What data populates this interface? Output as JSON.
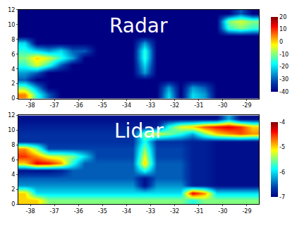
{
  "chart_data": [
    {
      "type": "heatmap",
      "title": "Radar",
      "color": "Jet",
      "x": [
        -38.25,
        -37.75,
        -37.25,
        -36.75,
        -36.25,
        -35.75,
        -35.25,
        -34.75,
        -34.25,
        -33.75,
        -33.25,
        -32.75,
        -32.25,
        -31.75,
        -31.25,
        -30.75,
        -30.25,
        -29.75,
        -29.25,
        -28.75
      ],
      "y": [
        0.5,
        1.5,
        2.5,
        3.5,
        4.5,
        5.5,
        6.5,
        7.5,
        8.5,
        9.5,
        10.5,
        11.5
      ],
      "xlim": [
        -38.5,
        -28.5
      ],
      "xticks": [
        -38,
        -37,
        -36,
        -35,
        -34,
        -33,
        -32,
        -31,
        -30,
        -29
      ],
      "ylim": [
        0,
        12
      ],
      "yticks": [
        0,
        2,
        4,
        6,
        8,
        10,
        12
      ],
      "color_range": [
        -40,
        20
      ],
      "color_ticks": [
        -40,
        -30,
        -20,
        -10,
        0,
        10,
        20
      ],
      "z": [
        [
          5,
          -15,
          -30,
          -40,
          -40,
          -40,
          -40,
          -40,
          -40,
          -40,
          -40,
          -40,
          -20,
          -40,
          -20,
          -25,
          -40,
          -40,
          -40,
          -40
        ],
        [
          -10,
          -25,
          -40,
          -40,
          -40,
          -40,
          -40,
          -40,
          -40,
          -40,
          -40,
          -40,
          -25,
          -40,
          -25,
          -30,
          -40,
          -40,
          -40,
          -40
        ],
        [
          -30,
          -40,
          -40,
          -40,
          -40,
          -40,
          -40,
          -40,
          -40,
          -40,
          -40,
          -40,
          -40,
          -40,
          -40,
          -40,
          -40,
          -40,
          -40,
          -40
        ],
        [
          -25,
          -30,
          -40,
          -40,
          -40,
          -40,
          -40,
          -40,
          -40,
          -40,
          -25,
          -40,
          -40,
          -40,
          -40,
          -40,
          -40,
          -40,
          -40,
          -40
        ],
        [
          -15,
          -5,
          -15,
          -30,
          -40,
          -40,
          -40,
          -40,
          -40,
          -40,
          -20,
          -40,
          -40,
          -40,
          -40,
          -40,
          -40,
          -40,
          -40,
          -40
        ],
        [
          -10,
          0,
          -5,
          -15,
          -25,
          -40,
          -40,
          -40,
          -40,
          -40,
          -15,
          -40,
          -40,
          -40,
          -40,
          -40,
          -40,
          -40,
          -40,
          -40
        ],
        [
          -15,
          -20,
          -25,
          -20,
          -30,
          -30,
          -40,
          -40,
          -40,
          -40,
          -15,
          -40,
          -40,
          -40,
          -40,
          -40,
          -40,
          -40,
          -40,
          -40
        ],
        [
          -20,
          -40,
          -40,
          -40,
          -40,
          -40,
          -40,
          -40,
          -40,
          -40,
          -25,
          -40,
          -40,
          -40,
          -40,
          -40,
          -40,
          -40,
          -40,
          -40
        ],
        [
          -40,
          -40,
          -40,
          -40,
          -40,
          -40,
          -40,
          -40,
          -40,
          -40,
          -40,
          -40,
          -40,
          -40,
          -40,
          -40,
          -40,
          -40,
          -40,
          -40
        ],
        [
          -40,
          -40,
          -40,
          -40,
          -40,
          -40,
          -40,
          -40,
          -40,
          -40,
          -40,
          -40,
          -40,
          -40,
          -40,
          -40,
          -40,
          -15,
          -10,
          -15
        ],
        [
          -40,
          -40,
          -40,
          -40,
          -40,
          -40,
          -40,
          -40,
          -40,
          -40,
          -40,
          -40,
          -40,
          -40,
          -40,
          -40,
          -40,
          -10,
          -5,
          -10
        ],
        [
          -40,
          -40,
          -40,
          -40,
          -40,
          -40,
          -40,
          -40,
          -40,
          -40,
          -40,
          -40,
          -40,
          -40,
          -40,
          -40,
          -40,
          -40,
          -30,
          -40
        ]
      ]
    },
    {
      "type": "heatmap",
      "title": "Lidar",
      "color": "Jet",
      "x": [
        -38.25,
        -37.75,
        -37.25,
        -36.75,
        -36.25,
        -35.75,
        -35.25,
        -34.75,
        -34.25,
        -33.75,
        -33.25,
        -32.75,
        -32.25,
        -31.75,
        -31.25,
        -30.75,
        -30.25,
        -29.75,
        -29.25,
        -28.75
      ],
      "y": [
        0.5,
        1.5,
        2.5,
        3.5,
        4.5,
        5.5,
        6.5,
        7.5,
        8.5,
        9.5,
        10.5,
        11.5
      ],
      "xlim": [
        -38.5,
        -28.5
      ],
      "xticks": [
        -38,
        -37,
        -36,
        -35,
        -34,
        -33,
        -32,
        -31,
        -30,
        -29
      ],
      "ylim": [
        0,
        12
      ],
      "yticks": [
        0,
        2,
        4,
        6,
        8,
        10,
        12
      ],
      "color_range": [
        -7,
        -4
      ],
      "color_ticks": [
        -7,
        -6,
        -5,
        -4
      ],
      "z": [
        [
          -5,
          -5,
          -5.5,
          -5.5,
          -5.5,
          -5.5,
          -5.5,
          -5.5,
          -5.5,
          -5.5,
          -5.5,
          -5.5,
          -5.5,
          -5.5,
          -5.8,
          -5.5,
          -5.5,
          -5.5,
          -5.5,
          -5.5
        ],
        [
          -5,
          -6,
          -6,
          -6,
          -6,
          -6,
          -6,
          -6,
          -6,
          -6,
          -6,
          -6,
          -6,
          -6,
          -4.3,
          -4.8,
          -6,
          -6,
          -6,
          -6
        ],
        [
          -6.3,
          -6.3,
          -6.3,
          -6.3,
          -6.3,
          -6.3,
          -6.3,
          -6.3,
          -6.3,
          -6.3,
          -6.9,
          -6.3,
          -6.3,
          -6.3,
          -6.8,
          -6.8,
          -6.9,
          -6.9,
          -6.9,
          -6.9
        ],
        [
          -6.5,
          -6.5,
          -6.5,
          -6.5,
          -6.5,
          -6.5,
          -6.5,
          -6.5,
          -6.5,
          -6.5,
          -6.9,
          -6.5,
          -6.5,
          -6.5,
          -6.8,
          -6.8,
          -6.9,
          -6.9,
          -6.9,
          -6.9
        ],
        [
          -6.9,
          -6.9,
          -6.9,
          -6.8,
          -6.5,
          -6.5,
          -6.5,
          -6.5,
          -6.5,
          -6.5,
          -5.8,
          -6.5,
          -6.5,
          -6.5,
          -6.8,
          -6.8,
          -6.9,
          -6.9,
          -6.9,
          -6.9
        ],
        [
          -5,
          -4.3,
          -4.4,
          -4.8,
          -5.8,
          -6.5,
          -6.5,
          -6.5,
          -6.5,
          -6.5,
          -5,
          -6.5,
          -6.5,
          -6.5,
          -6.8,
          -6.8,
          -6.9,
          -6.9,
          -6.9,
          -6.9
        ],
        [
          -4.5,
          -4.8,
          -5.2,
          -5.3,
          -5.5,
          -6,
          -6.6,
          -6.6,
          -6.6,
          -6.6,
          -5.2,
          -6.6,
          -6.6,
          -6.6,
          -6.8,
          -6.8,
          -6.9,
          -6.9,
          -6.9,
          -6.9
        ],
        [
          -4.8,
          -5.5,
          -6.6,
          -6.6,
          -6.6,
          -6.6,
          -6.6,
          -6.6,
          -6.6,
          -6.6,
          -5.5,
          -6.6,
          -6.6,
          -6.6,
          -6.8,
          -6.8,
          -6.9,
          -6.9,
          -6.9,
          -6.9
        ],
        [
          -6.7,
          -6.7,
          -6.7,
          -6.7,
          -6.7,
          -6.7,
          -6.7,
          -6.7,
          -6.7,
          -6.7,
          -5.8,
          -6.7,
          -6.7,
          -6.7,
          -6.8,
          -6.8,
          -6.9,
          -6.9,
          -6.9,
          -6.9
        ],
        [
          -6.7,
          -6.7,
          -6.7,
          -6.7,
          -6.7,
          -6.7,
          -6.7,
          -6.7,
          -6.7,
          -6.7,
          -5.5,
          -5.2,
          -5.5,
          -5.8,
          -6.2,
          -5.5,
          -5,
          -4.8,
          -4.6,
          -4.8
        ],
        [
          -6.8,
          -6.8,
          -6.8,
          -6.8,
          -6.8,
          -6.8,
          -6.8,
          -6.8,
          -6.8,
          -6.8,
          -6.8,
          -6.8,
          -5.8,
          -5.2,
          -5,
          -4.6,
          -4.4,
          -4.3,
          -4.5,
          -5
        ],
        [
          -6.9,
          -6.9,
          -6.9,
          -6.9,
          -6.9,
          -6.9,
          -6.9,
          -6.9,
          -6.9,
          -6.9,
          -6.9,
          -6.9,
          -6.9,
          -6.9,
          -6.9,
          -6.9,
          -6.9,
          -6.2,
          -6.9,
          -6.9
        ]
      ]
    }
  ]
}
